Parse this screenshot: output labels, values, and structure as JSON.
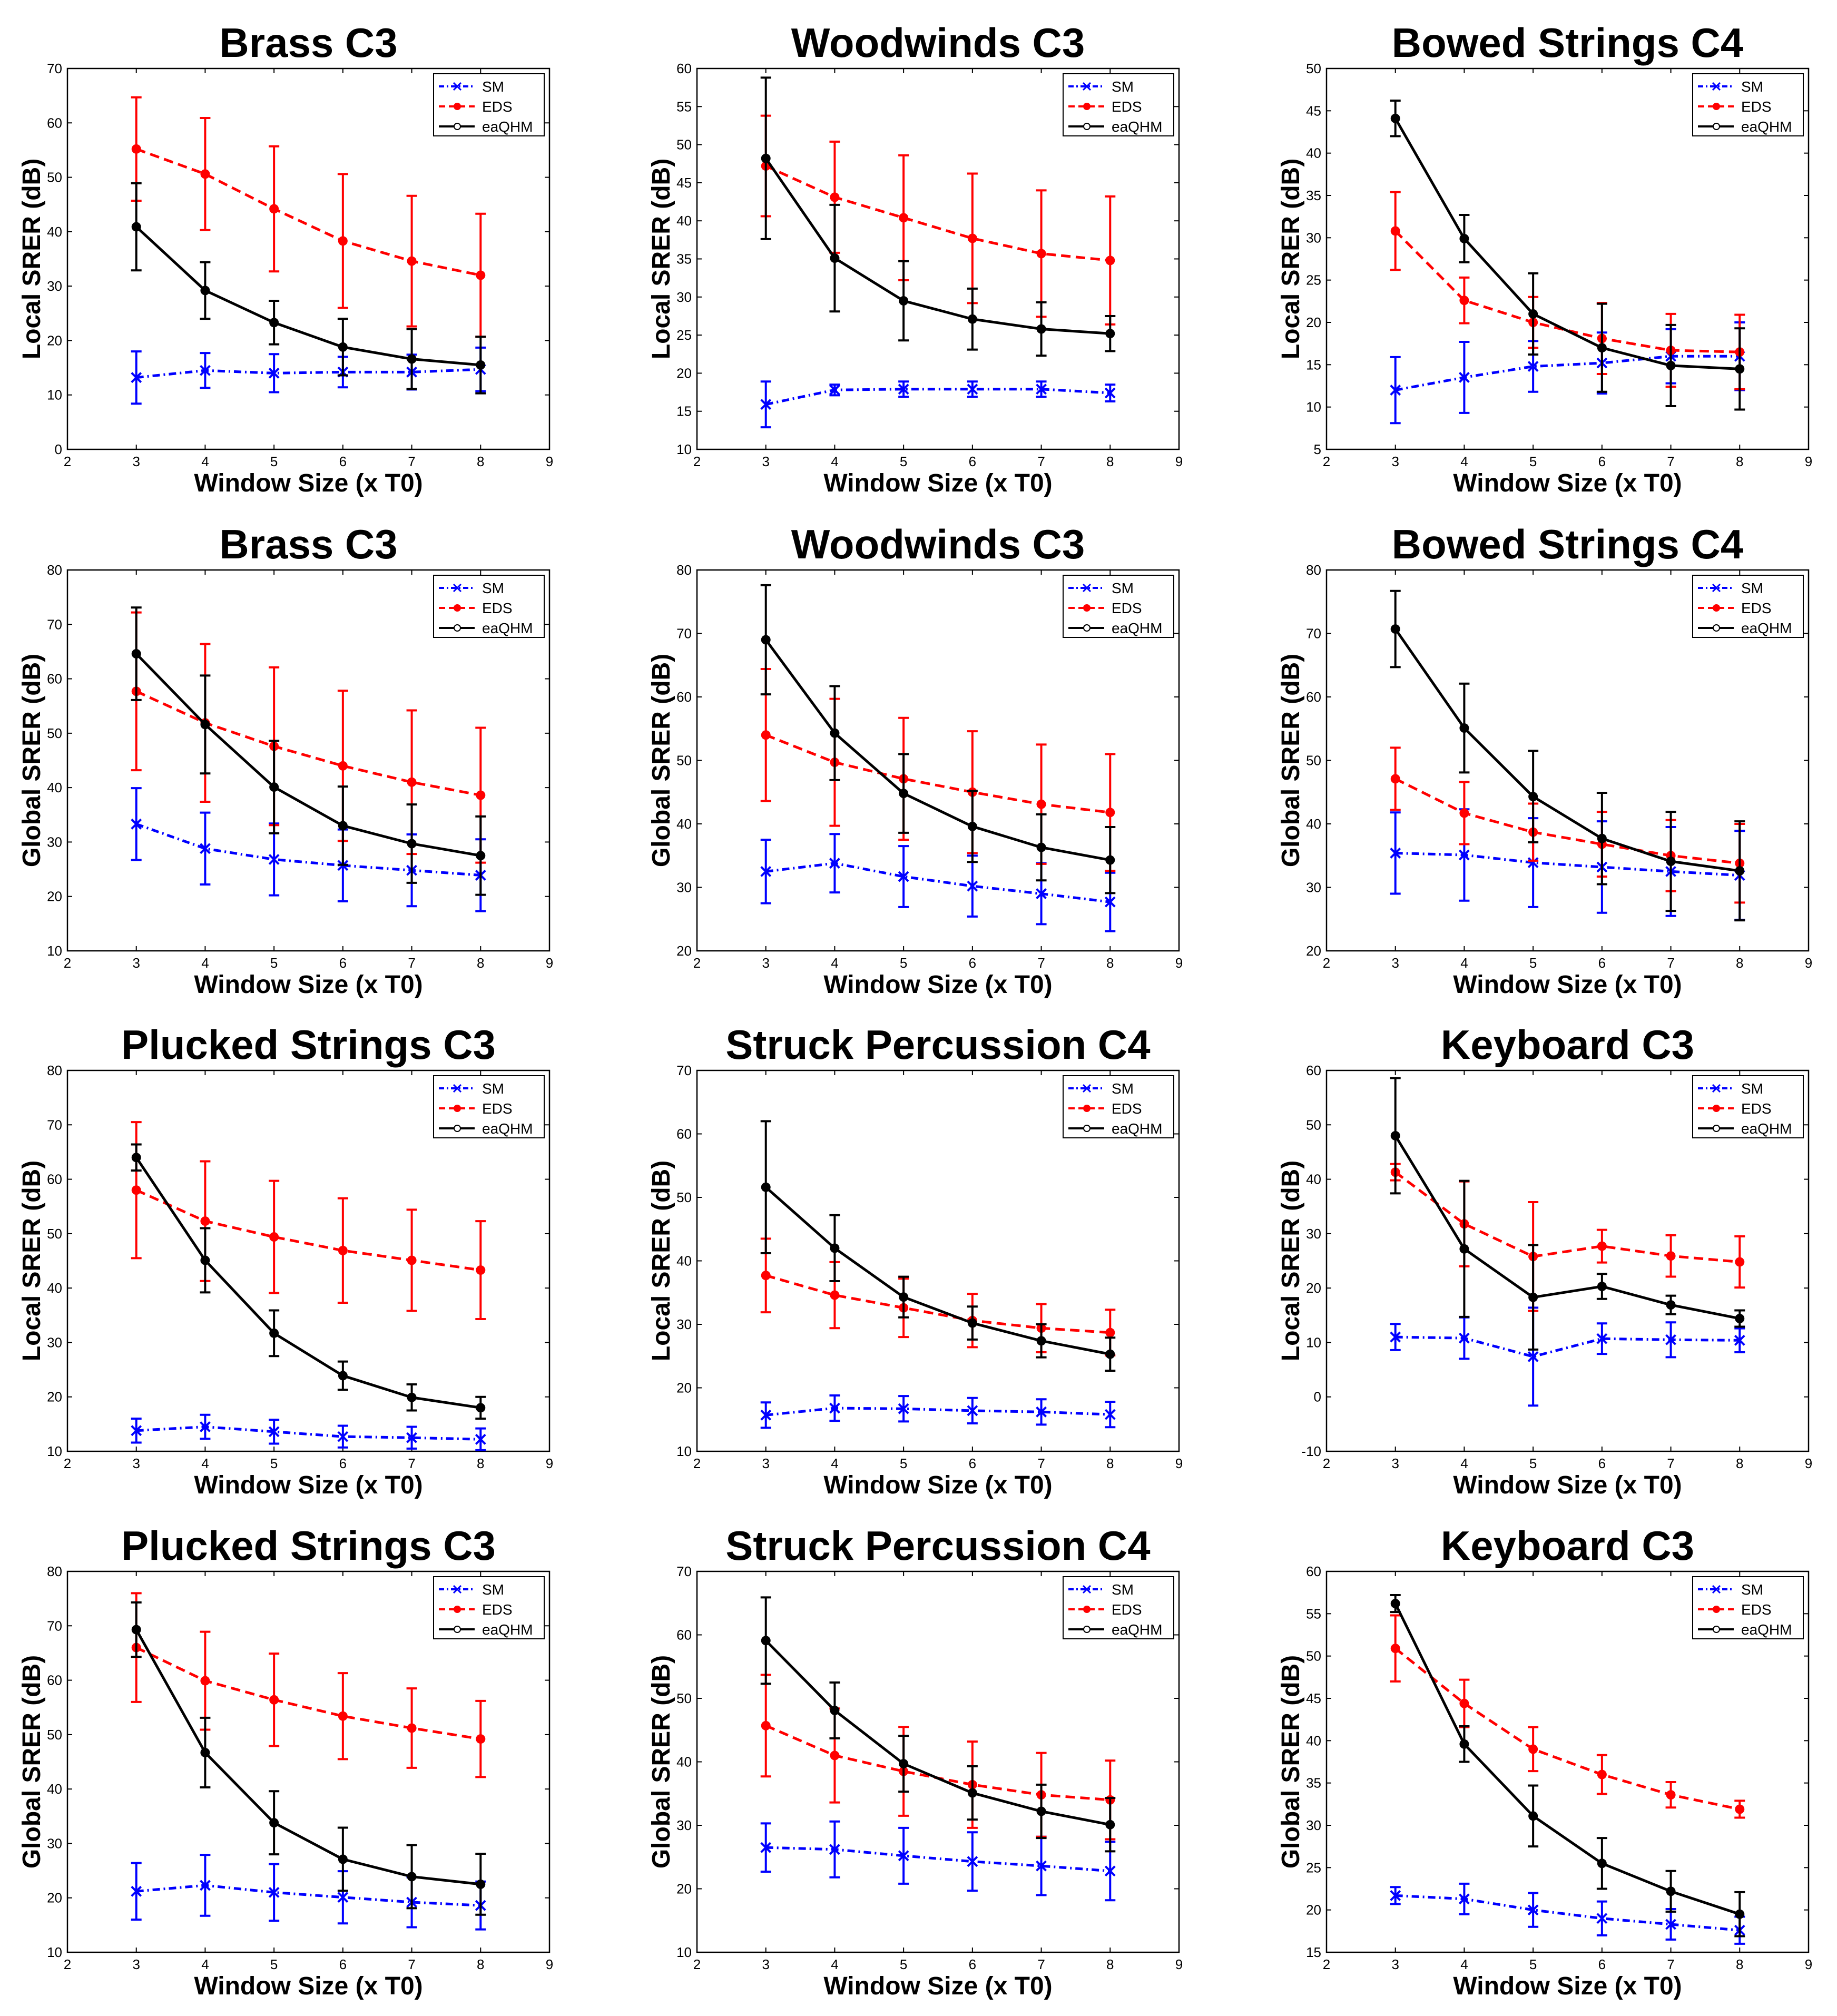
{
  "figure": {
    "x_tick_labels": [
      "2",
      "3",
      "4",
      "5",
      "6",
      "7",
      "8",
      "9"
    ],
    "series_styles": {
      "SM": {
        "color": "#0000ff",
        "dash": "dashdot",
        "marker": "x"
      },
      "EDS": {
        "color": "#ff0000",
        "dash": "dashed",
        "marker": "dot"
      },
      "eaQHM": {
        "color": "#000000",
        "dash": "solid",
        "marker": "dot"
      }
    }
  },
  "chart_data": [
    {
      "type": "line",
      "title": "Brass C3",
      "xlabel": "Window Size (x T0)",
      "ylabel": "Local SRER (dB)",
      "xlim": [
        2,
        9
      ],
      "ylim": [
        0,
        70
      ],
      "yticks": [
        0,
        10,
        20,
        30,
        40,
        50,
        60,
        70
      ],
      "x": [
        3,
        4,
        5,
        6,
        7,
        8
      ],
      "legend": [
        "SM",
        "EDS",
        "eaQHM"
      ],
      "legend_position": "top-right",
      "series": [
        {
          "name": "SM",
          "values": [
            13.2,
            14.5,
            14.0,
            14.2,
            14.2,
            14.7
          ],
          "errors": [
            4.8,
            3.2,
            3.5,
            2.8,
            3.2,
            4.0
          ]
        },
        {
          "name": "EDS",
          "values": [
            55.2,
            50.6,
            44.2,
            38.3,
            34.6,
            32.0
          ],
          "errors": [
            9.5,
            10.3,
            11.5,
            12.3,
            12.0,
            11.3
          ]
        },
        {
          "name": "eaQHM",
          "values": [
            40.9,
            29.2,
            23.3,
            18.8,
            16.6,
            15.5
          ],
          "errors": [
            8.0,
            5.2,
            4.0,
            5.2,
            5.5,
            5.2
          ]
        }
      ]
    },
    {
      "type": "line",
      "title": "Woodwinds C3",
      "xlabel": "Window Size (x T0)",
      "ylabel": "Local SRER (dB)",
      "xlim": [
        2,
        9
      ],
      "ylim": [
        10,
        60
      ],
      "yticks": [
        10,
        15,
        20,
        25,
        30,
        35,
        40,
        45,
        50,
        55,
        60
      ],
      "x": [
        3,
        4,
        5,
        6,
        7,
        8
      ],
      "legend": [
        "SM",
        "EDS",
        "eaQHM"
      ],
      "legend_position": "top-right",
      "series": [
        {
          "name": "SM",
          "values": [
            15.9,
            17.8,
            17.9,
            17.9,
            17.9,
            17.4
          ],
          "errors": [
            3.0,
            0.7,
            1.0,
            1.0,
            1.0,
            1.1
          ]
        },
        {
          "name": "EDS",
          "values": [
            47.2,
            43.1,
            40.4,
            37.7,
            35.7,
            34.8
          ],
          "errors": [
            6.6,
            7.3,
            8.2,
            8.5,
            8.3,
            8.4
          ]
        },
        {
          "name": "eaQHM",
          "values": [
            48.2,
            35.1,
            29.5,
            27.1,
            25.8,
            25.2
          ],
          "errors": [
            10.6,
            7.0,
            5.2,
            4.0,
            3.5,
            2.3
          ]
        }
      ]
    },
    {
      "type": "line",
      "title": "Bowed Strings C4",
      "xlabel": "Window Size (x T0)",
      "ylabel": "Local SRER (dB)",
      "xlim": [
        2,
        9
      ],
      "ylim": [
        5,
        50
      ],
      "yticks": [
        5,
        10,
        15,
        20,
        25,
        30,
        35,
        40,
        45,
        50
      ],
      "x": [
        3,
        4,
        5,
        6,
        7,
        8
      ],
      "legend": [
        "SM",
        "EDS",
        "eaQHM"
      ],
      "legend_position": "top-right",
      "series": [
        {
          "name": "SM",
          "values": [
            12.0,
            13.5,
            14.8,
            15.2,
            16.0,
            16.0
          ],
          "errors": [
            3.9,
            4.2,
            3.0,
            3.6,
            3.2,
            4.0
          ]
        },
        {
          "name": "EDS",
          "values": [
            30.8,
            22.6,
            20.0,
            18.1,
            16.7,
            16.5
          ],
          "errors": [
            4.6,
            2.7,
            3.0,
            4.2,
            4.3,
            4.4
          ]
        },
        {
          "name": "eaQHM",
          "values": [
            44.1,
            29.9,
            21.0,
            17.0,
            14.9,
            14.5
          ],
          "errors": [
            2.1,
            2.8,
            4.8,
            5.2,
            4.8,
            4.8
          ]
        }
      ]
    },
    {
      "type": "line",
      "title": "Brass C3",
      "xlabel": "Window Size (x T0)",
      "ylabel": "Global SRER (dB)",
      "xlim": [
        2,
        9
      ],
      "ylim": [
        10,
        80
      ],
      "yticks": [
        10,
        20,
        30,
        40,
        50,
        60,
        70,
        80
      ],
      "x": [
        3,
        4,
        5,
        6,
        7,
        8
      ],
      "legend": [
        "SM",
        "EDS",
        "eaQHM"
      ],
      "legend_position": "top-right",
      "series": [
        {
          "name": "SM",
          "values": [
            33.3,
            28.8,
            26.8,
            25.7,
            24.8,
            23.9
          ],
          "errors": [
            6.6,
            6.6,
            6.6,
            6.6,
            6.6,
            6.6
          ]
        },
        {
          "name": "EDS",
          "values": [
            57.7,
            51.9,
            47.6,
            44.0,
            41.0,
            38.6
          ],
          "errors": [
            14.5,
            14.5,
            14.5,
            13.8,
            13.2,
            12.4
          ]
        },
        {
          "name": "eaQHM",
          "values": [
            64.6,
            51.6,
            40.1,
            33.0,
            29.7,
            27.5
          ],
          "errors": [
            8.5,
            9.0,
            8.5,
            7.2,
            7.2,
            7.2
          ]
        }
      ]
    },
    {
      "type": "line",
      "title": "Woodwinds C3",
      "xlabel": "Window Size (x T0)",
      "ylabel": "Global SRER (dB)",
      "xlim": [
        2,
        9
      ],
      "ylim": [
        20,
        80
      ],
      "yticks": [
        20,
        30,
        40,
        50,
        60,
        70,
        80
      ],
      "x": [
        3,
        4,
        5,
        6,
        7,
        8
      ],
      "legend": [
        "SM",
        "EDS",
        "eaQHM"
      ],
      "legend_position": "top-right",
      "series": [
        {
          "name": "SM",
          "values": [
            32.5,
            33.8,
            31.7,
            30.2,
            29.0,
            27.7
          ],
          "errors": [
            5.0,
            4.6,
            4.8,
            4.8,
            4.8,
            4.6
          ]
        },
        {
          "name": "EDS",
          "values": [
            54.0,
            49.7,
            47.1,
            45.0,
            43.1,
            41.8
          ],
          "errors": [
            10.4,
            10.0,
            9.6,
            9.6,
            9.4,
            9.2
          ]
        },
        {
          "name": "eaQHM",
          "values": [
            69.0,
            54.3,
            44.8,
            39.6,
            36.3,
            34.3
          ],
          "errors": [
            8.6,
            7.4,
            6.2,
            5.6,
            5.2,
            5.2
          ]
        }
      ]
    },
    {
      "type": "line",
      "title": "Bowed Strings C4",
      "xlabel": "Window Size (x T0)",
      "ylabel": "Global SRER (dB)",
      "xlim": [
        2,
        9
      ],
      "ylim": [
        20,
        80
      ],
      "yticks": [
        20,
        30,
        40,
        50,
        60,
        70,
        80
      ],
      "x": [
        3,
        4,
        5,
        6,
        7,
        8
      ],
      "legend": [
        "SM",
        "EDS",
        "eaQHM"
      ],
      "legend_position": "top-right",
      "series": [
        {
          "name": "SM",
          "values": [
            35.4,
            35.1,
            33.9,
            33.2,
            32.5,
            31.9
          ],
          "errors": [
            6.4,
            7.2,
            7.0,
            7.2,
            7.0,
            7.0
          ]
        },
        {
          "name": "EDS",
          "values": [
            47.1,
            41.7,
            38.7,
            36.8,
            35.0,
            33.8
          ],
          "errors": [
            4.9,
            4.9,
            4.5,
            5.1,
            5.6,
            6.2
          ]
        },
        {
          "name": "eaQHM",
          "values": [
            70.7,
            55.1,
            44.3,
            37.7,
            34.1,
            32.6
          ],
          "errors": [
            6.0,
            7.0,
            7.2,
            7.2,
            7.8,
            7.8
          ]
        }
      ]
    },
    {
      "type": "line",
      "title": "Plucked Strings C3",
      "xlabel": "Window Size (x T0)",
      "ylabel": "Local SRER (dB)",
      "xlim": [
        2,
        9
      ],
      "ylim": [
        10,
        80
      ],
      "yticks": [
        10,
        20,
        30,
        40,
        50,
        60,
        70,
        80
      ],
      "x": [
        3,
        4,
        5,
        6,
        7,
        8
      ],
      "legend": [
        "SM",
        "EDS",
        "eaQHM"
      ],
      "legend_position": "top-right",
      "series": [
        {
          "name": "SM",
          "values": [
            13.8,
            14.5,
            13.6,
            12.7,
            12.5,
            12.2
          ],
          "errors": [
            2.2,
            2.2,
            2.2,
            2.0,
            2.0,
            2.0
          ]
        },
        {
          "name": "EDS",
          "values": [
            58.0,
            52.3,
            49.4,
            46.9,
            45.1,
            43.3
          ],
          "errors": [
            12.5,
            11.0,
            10.3,
            9.6,
            9.3,
            9.0
          ]
        },
        {
          "name": "eaQHM",
          "values": [
            64.0,
            45.1,
            31.7,
            23.9,
            19.9,
            18.0
          ],
          "errors": [
            2.4,
            5.9,
            4.2,
            2.6,
            2.4,
            2.0
          ]
        }
      ]
    },
    {
      "type": "line",
      "title": "Struck Percussion C4",
      "xlabel": "Window Size (x T0)",
      "ylabel": "Local SRER (dB)",
      "xlim": [
        2,
        9
      ],
      "ylim": [
        10,
        70
      ],
      "yticks": [
        10,
        20,
        30,
        40,
        50,
        60,
        70
      ],
      "x": [
        3,
        4,
        5,
        6,
        7,
        8
      ],
      "legend": [
        "SM",
        "EDS",
        "eaQHM"
      ],
      "legend_position": "top-right",
      "series": [
        {
          "name": "SM",
          "values": [
            15.7,
            16.8,
            16.7,
            16.4,
            16.2,
            15.8
          ],
          "errors": [
            2.0,
            2.0,
            2.0,
            2.0,
            2.0,
            2.0
          ]
        },
        {
          "name": "EDS",
          "values": [
            37.7,
            34.6,
            32.6,
            30.6,
            29.4,
            28.7
          ],
          "errors": [
            5.8,
            5.2,
            4.6,
            4.2,
            3.8,
            3.6
          ]
        },
        {
          "name": "eaQHM",
          "values": [
            51.6,
            42.0,
            34.3,
            30.2,
            27.4,
            25.3
          ],
          "errors": [
            10.4,
            5.2,
            3.2,
            2.6,
            2.6,
            2.6
          ]
        }
      ]
    },
    {
      "type": "line",
      "title": "Keyboard C3",
      "xlabel": "Window Size (x T0)",
      "ylabel": "Local SRER (dB)",
      "xlim": [
        2,
        9
      ],
      "ylim": [
        -10,
        60
      ],
      "yticks": [
        -10,
        0,
        10,
        20,
        30,
        40,
        50,
        60
      ],
      "x": [
        3,
        4,
        5,
        6,
        7,
        8
      ],
      "legend": [
        "SM",
        "EDS",
        "eaQHM"
      ],
      "legend_position": "top-right",
      "series": [
        {
          "name": "SM",
          "values": [
            11.0,
            10.8,
            7.4,
            10.7,
            10.5,
            10.4
          ],
          "errors": [
            2.4,
            3.8,
            9.0,
            2.8,
            3.2,
            2.2
          ]
        },
        {
          "name": "EDS",
          "values": [
            41.3,
            31.8,
            25.8,
            27.7,
            25.9,
            24.8
          ],
          "errors": [
            1.5,
            7.8,
            10.0,
            3.0,
            3.8,
            4.7
          ]
        },
        {
          "name": "eaQHM",
          "values": [
            48.0,
            27.2,
            18.3,
            20.3,
            16.9,
            14.4
          ],
          "errors": [
            10.6,
            12.5,
            9.6,
            2.3,
            1.7,
            1.5
          ]
        }
      ]
    },
    {
      "type": "line",
      "title": "Plucked Strings C3",
      "xlabel": "Window Size (x T0)",
      "ylabel": "Global SRER (dB)",
      "xlim": [
        2,
        9
      ],
      "ylim": [
        10,
        80
      ],
      "yticks": [
        10,
        20,
        30,
        40,
        50,
        60,
        70,
        80
      ],
      "x": [
        3,
        4,
        5,
        6,
        7,
        8
      ],
      "legend": [
        "SM",
        "EDS",
        "eaQHM"
      ],
      "legend_position": "top-right",
      "series": [
        {
          "name": "SM",
          "values": [
            21.2,
            22.3,
            21.0,
            20.1,
            19.2,
            18.6
          ],
          "errors": [
            5.2,
            5.6,
            5.2,
            4.8,
            4.6,
            4.4
          ]
        },
        {
          "name": "EDS",
          "values": [
            66.0,
            59.9,
            56.4,
            53.4,
            51.2,
            49.2
          ],
          "errors": [
            10.0,
            9.0,
            8.5,
            7.9,
            7.3,
            7.0
          ]
        },
        {
          "name": "eaQHM",
          "values": [
            69.3,
            46.7,
            33.8,
            27.1,
            23.9,
            22.5
          ],
          "errors": [
            5.0,
            6.4,
            5.8,
            5.8,
            5.8,
            5.6
          ]
        }
      ]
    },
    {
      "type": "line",
      "title": "Struck Percussion C4",
      "xlabel": "Window Size (x T0)",
      "ylabel": "Global SRER (dB)",
      "xlim": [
        2,
        9
      ],
      "ylim": [
        10,
        70
      ],
      "yticks": [
        10,
        20,
        30,
        40,
        50,
        60,
        70
      ],
      "x": [
        3,
        4,
        5,
        6,
        7,
        8
      ],
      "legend": [
        "SM",
        "EDS",
        "eaQHM"
      ],
      "legend_position": "top-right",
      "series": [
        {
          "name": "SM",
          "values": [
            26.5,
            26.2,
            25.2,
            24.3,
            23.6,
            22.8
          ],
          "errors": [
            3.8,
            4.4,
            4.4,
            4.6,
            4.6,
            4.6
          ]
        },
        {
          "name": "EDS",
          "values": [
            45.7,
            41.0,
            38.5,
            36.4,
            34.8,
            34.0
          ],
          "errors": [
            8.0,
            7.4,
            7.0,
            6.8,
            6.6,
            6.2
          ]
        },
        {
          "name": "eaQHM",
          "values": [
            59.1,
            48.1,
            39.7,
            35.1,
            32.2,
            30.1
          ],
          "errors": [
            6.8,
            4.4,
            4.4,
            4.2,
            4.2,
            4.2
          ]
        }
      ]
    },
    {
      "type": "line",
      "title": "Keyboard C3",
      "xlabel": "Window Size (x T0)",
      "ylabel": "Global SRER (dB)",
      "xlim": [
        2,
        9
      ],
      "ylim": [
        15,
        60
      ],
      "yticks": [
        15,
        20,
        25,
        30,
        35,
        40,
        45,
        50,
        55,
        60
      ],
      "x": [
        3,
        4,
        5,
        6,
        7,
        8
      ],
      "legend": [
        "SM",
        "EDS",
        "eaQHM"
      ],
      "legend_position": "top-right",
      "series": [
        {
          "name": "SM",
          "values": [
            21.7,
            21.3,
            20.0,
            19.0,
            18.3,
            17.6
          ],
          "errors": [
            1.0,
            1.8,
            2.0,
            2.0,
            1.8,
            1.6
          ]
        },
        {
          "name": "EDS",
          "values": [
            50.9,
            44.4,
            39.0,
            36.0,
            33.6,
            31.9
          ],
          "errors": [
            3.9,
            2.8,
            2.6,
            2.3,
            1.5,
            1.0
          ]
        },
        {
          "name": "eaQHM",
          "values": [
            56.2,
            39.6,
            31.1,
            25.5,
            22.2,
            19.5
          ],
          "errors": [
            1.0,
            2.1,
            3.6,
            3.0,
            2.4,
            2.6
          ]
        }
      ]
    }
  ]
}
